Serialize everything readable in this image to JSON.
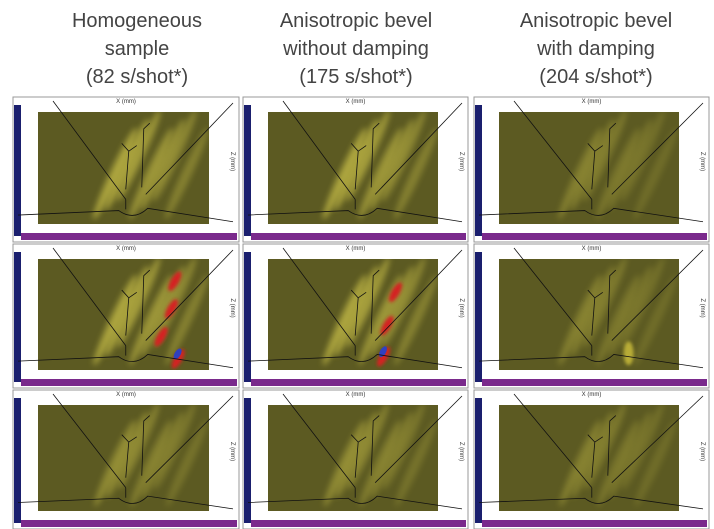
{
  "header": {
    "columns": [
      {
        "lines": [
          "Homogeneous",
          "sample",
          "(82 s/shot*)"
        ]
      },
      {
        "lines": [
          "Anisotropic bevel",
          "without damping",
          "(175 s/shot*)"
        ]
      },
      {
        "lines": [
          "Anisotropic bevel",
          "with damping",
          "(204 s/shot*)"
        ]
      }
    ]
  },
  "panels": {
    "x_axis_label": "X (mm)",
    "z_axis_label": "Z (mm)"
  }
}
